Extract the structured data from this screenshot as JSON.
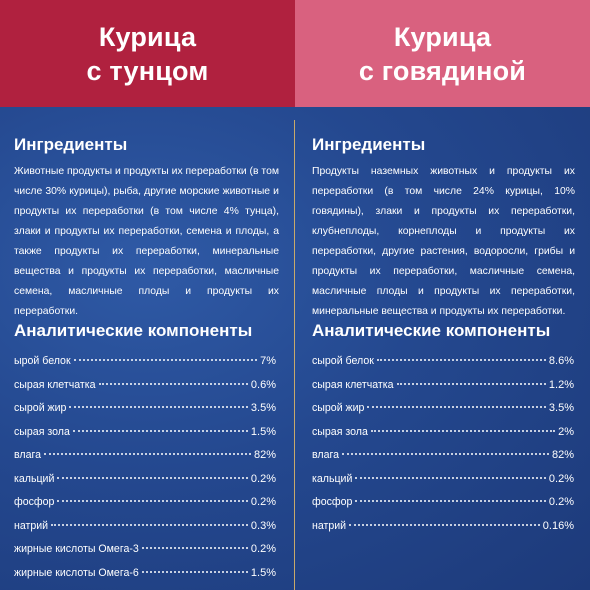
{
  "left": {
    "title_line1": "Курица",
    "title_line2": "с тунцом",
    "ingredients_title": "Ингредиенты",
    "ingredients_text": "Животные продукты и продукты их переработки (в том числе 30% курицы), рыба, другие морские животные и продукты их переработки (в том числе 4% тунца), злаки и продукты их переработки, семена и плоды, а также продукты их переработки, минеральные вещества и продукты их переработки, масличные семена, масличные плоды и продукты их переработки.",
    "analytical_title": "Аналитические компоненты",
    "components": [
      {
        "name": "ырой белок",
        "value": "7%"
      },
      {
        "name": "сырая клетчатка",
        "value": "0.6%"
      },
      {
        "name": "сырой жир",
        "value": "3.5%"
      },
      {
        "name": "сырая зола",
        "value": "1.5%"
      },
      {
        "name": "влага",
        "value": "82%"
      },
      {
        "name": "кальций",
        "value": "0.2%"
      },
      {
        "name": "фосфор",
        "value": "0.2%"
      },
      {
        "name": "натрий",
        "value": "0.3%"
      },
      {
        "name": "жирные кислоты Омега-3",
        "value": "0.2%"
      },
      {
        "name": "жирные кислоты Омега-6",
        "value": "1.5%"
      }
    ]
  },
  "right": {
    "title_line1": "Курица",
    "title_line2": "с говядиной",
    "ingredients_title": "Ингредиенты",
    "ingredients_text": "Продукты наземных животных и продукты их переработки (в том числе 24% курицы, 10% говядины), злаки и продукты их переработки, клубнеплоды, корнеплоды и продукты их переработки, другие растения, водоросли, грибы и продукты их переработки, масличные семена, масличные плоды и продукты их переработки, минеральные вещества и продукты их переработки.",
    "analytical_title": "Аналитические компоненты",
    "components": [
      {
        "name": "сырой белок",
        "value": "8.6%"
      },
      {
        "name": "сырая клетчатка",
        "value": "1.2%"
      },
      {
        "name": "сырой жир",
        "value": "3.5%"
      },
      {
        "name": "сырая зола",
        "value": "2%"
      },
      {
        "name": "влага",
        "value": "82%"
      },
      {
        "name": "кальций",
        "value": "0.2%"
      },
      {
        "name": "фосфор",
        "value": "0.2%"
      },
      {
        "name": "натрий",
        "value": "0.16%"
      }
    ]
  },
  "colors": {
    "left_header": "#b0213f",
    "right_header": "#d9617f",
    "background": "#24488f",
    "divider": "#c8a96a"
  }
}
